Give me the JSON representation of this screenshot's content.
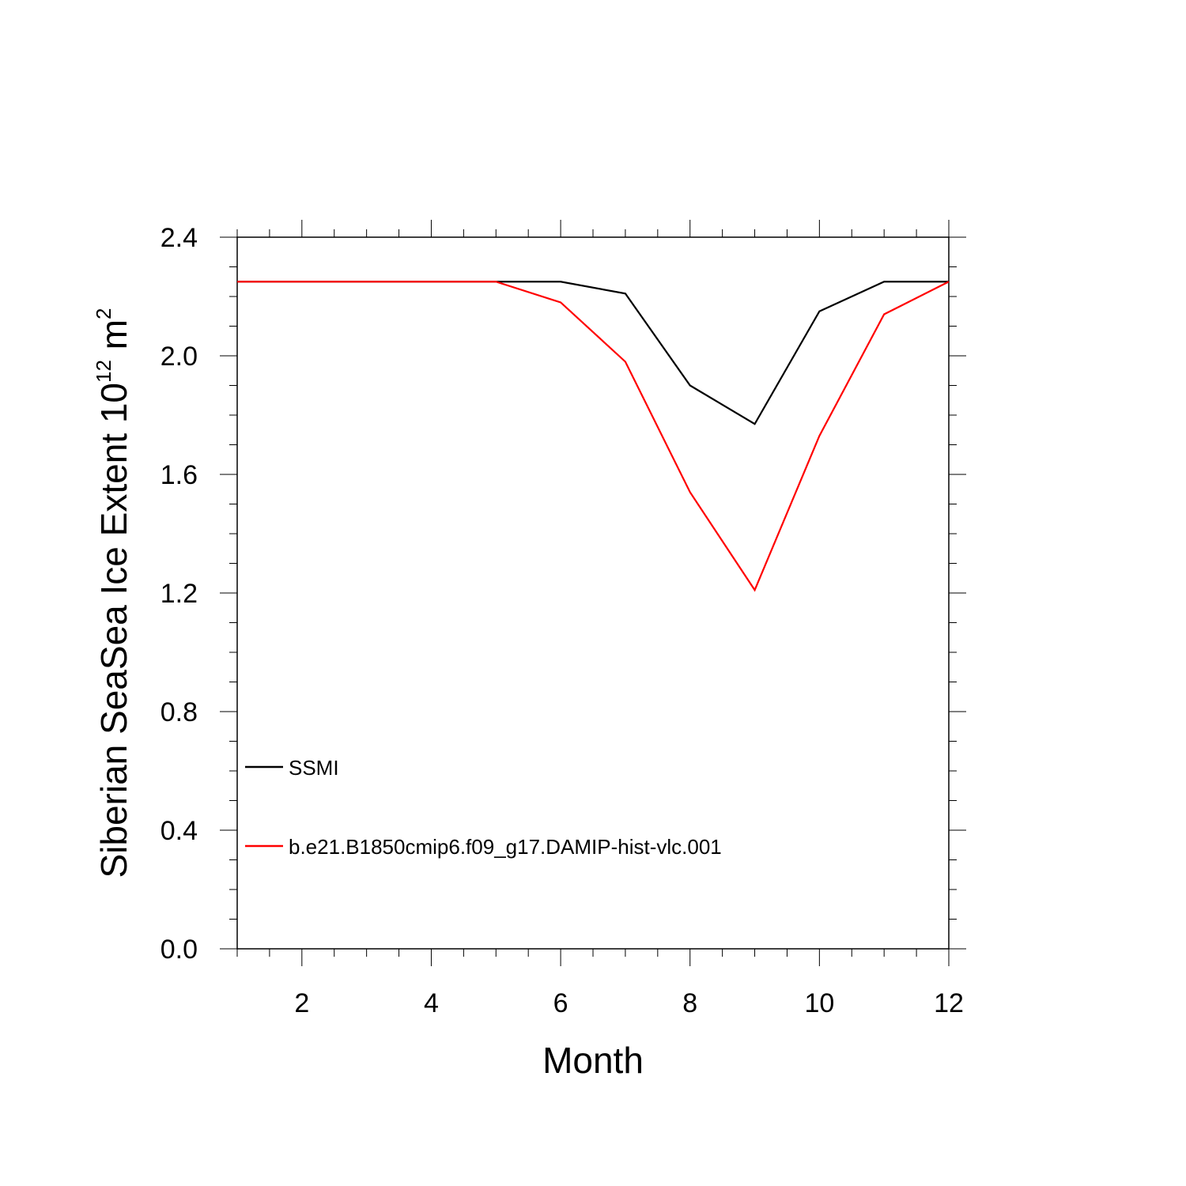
{
  "chart_data": {
    "type": "line",
    "xlabel": "Month",
    "ylabel": {
      "main": "Siberian SeaSea Ice Extent 10",
      "exp": "12",
      "unit": " m",
      "unit_exp": "2"
    },
    "xlim": [
      1,
      12
    ],
    "ylim": [
      0.0,
      2.4
    ],
    "x_ticks": [
      2,
      4,
      6,
      8,
      10,
      12
    ],
    "x_tick_labels": [
      "2",
      "4",
      "6",
      "8",
      "10",
      "12"
    ],
    "y_ticks": [
      0.0,
      0.4,
      0.8,
      1.2,
      1.6,
      2.0,
      2.4
    ],
    "y_tick_labels": [
      "0.0",
      "0.4",
      "0.8",
      "1.2",
      "1.6",
      "2.0",
      "2.4"
    ],
    "x": [
      1,
      2,
      3,
      4,
      5,
      6,
      7,
      8,
      9,
      10,
      11,
      12
    ],
    "series": [
      {
        "name": "SSMI",
        "color": "#000000",
        "values": [
          2.25,
          2.25,
          2.25,
          2.25,
          2.25,
          2.25,
          2.21,
          1.9,
          1.77,
          2.15,
          2.25,
          2.25
        ]
      },
      {
        "name": "b.e21.B1850cmip6.f09_g17.DAMIP-hist-vlc.001",
        "color": "#ff0000",
        "values": [
          2.25,
          2.25,
          2.25,
          2.25,
          2.25,
          2.18,
          1.98,
          1.54,
          1.21,
          1.73,
          2.14,
          2.25
        ]
      }
    ],
    "legend_position": "lower-left",
    "grid": false
  }
}
